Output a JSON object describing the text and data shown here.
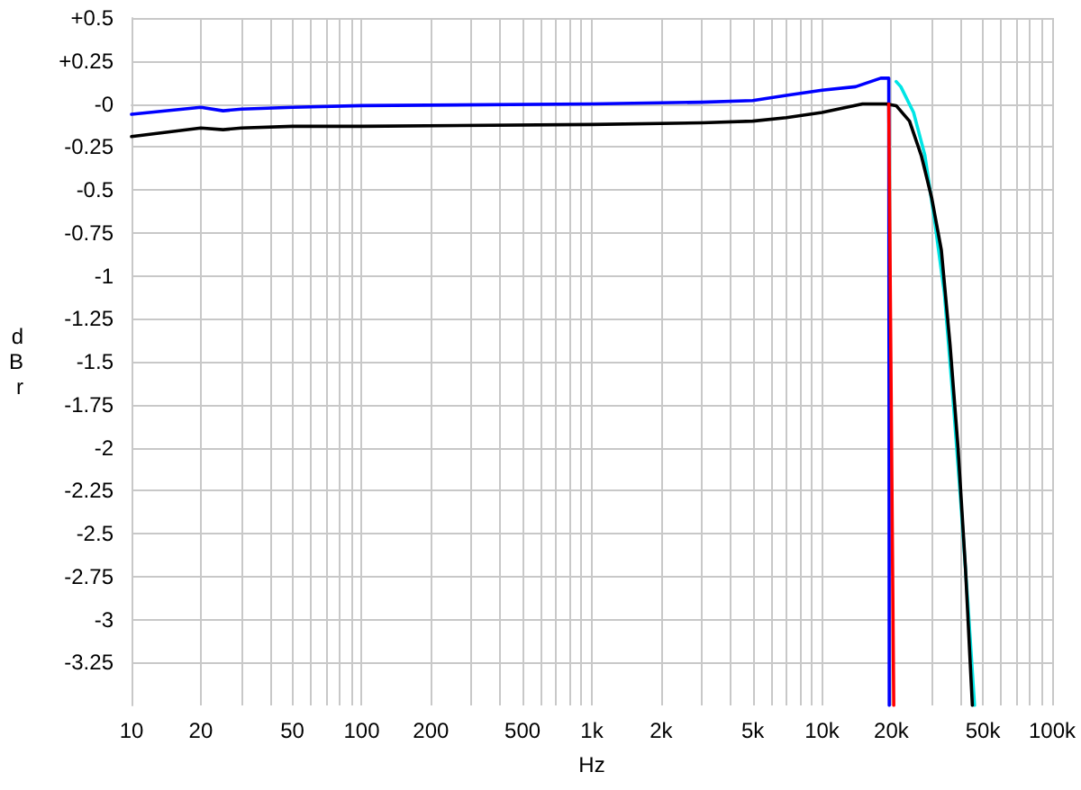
{
  "chart_data": {
    "type": "line",
    "xlabel": "Hz",
    "ylabel": "dBr",
    "log": "x",
    "grid": true,
    "marker": "none",
    "line_style": "solid",
    "xlim": [
      10,
      100000
    ],
    "ylim": [
      -3.5,
      0.5
    ],
    "xticks": [
      {
        "value": 10,
        "label": "10"
      },
      {
        "value": 20,
        "label": "20"
      },
      {
        "value": 30,
        "label": null
      },
      {
        "value": 40,
        "label": null
      },
      {
        "value": 50,
        "label": "50"
      },
      {
        "value": 60,
        "label": null
      },
      {
        "value": 70,
        "label": null
      },
      {
        "value": 80,
        "label": null
      },
      {
        "value": 90,
        "label": null
      },
      {
        "value": 100,
        "label": "100"
      },
      {
        "value": 200,
        "label": "200"
      },
      {
        "value": 300,
        "label": null
      },
      {
        "value": 400,
        "label": null
      },
      {
        "value": 500,
        "label": "500"
      },
      {
        "value": 600,
        "label": null
      },
      {
        "value": 700,
        "label": null
      },
      {
        "value": 800,
        "label": null
      },
      {
        "value": 900,
        "label": null
      },
      {
        "value": 1000,
        "label": "1k"
      },
      {
        "value": 2000,
        "label": "2k"
      },
      {
        "value": 3000,
        "label": null
      },
      {
        "value": 4000,
        "label": null
      },
      {
        "value": 5000,
        "label": "5k"
      },
      {
        "value": 6000,
        "label": null
      },
      {
        "value": 7000,
        "label": null
      },
      {
        "value": 8000,
        "label": null
      },
      {
        "value": 9000,
        "label": null
      },
      {
        "value": 10000,
        "label": "10k"
      },
      {
        "value": 20000,
        "label": "20k"
      },
      {
        "value": 30000,
        "label": null
      },
      {
        "value": 40000,
        "label": null
      },
      {
        "value": 50000,
        "label": "50k"
      },
      {
        "value": 60000,
        "label": null
      },
      {
        "value": 70000,
        "label": null
      },
      {
        "value": 80000,
        "label": null
      },
      {
        "value": 90000,
        "label": null
      },
      {
        "value": 100000,
        "label": "100k"
      }
    ],
    "yticks": [
      {
        "value": 0.5,
        "label": "+0.5"
      },
      {
        "value": 0.25,
        "label": "+0.25"
      },
      {
        "value": 0,
        "label": "-0"
      },
      -0.25,
      -0.5,
      -0.75,
      -1,
      -1.25,
      -1.5,
      -1.75,
      -2,
      -2.25,
      -2.5,
      -2.75,
      -3,
      -3.25
    ],
    "series": [
      {
        "color": "#00e5e5",
        "x": [
          21000,
          22000,
          25000,
          28000,
          31000,
          34000,
          37000,
          40000,
          43000,
          46000
        ],
        "values": [
          0.13,
          0.1,
          -0.05,
          -0.3,
          -0.7,
          -1.1,
          -1.7,
          -2.3,
          -2.9,
          -3.5
        ]
      },
      {
        "color": "#0000ff",
        "x": [
          10,
          20,
          25,
          30,
          50,
          100,
          1000,
          3000,
          5000,
          7000,
          10000,
          14000,
          18000,
          19500,
          19600
        ],
        "values": [
          -0.06,
          -0.02,
          -0.04,
          -0.03,
          -0.02,
          -0.01,
          0,
          0.01,
          0.02,
          0.05,
          0.08,
          0.1,
          0.15,
          0.15,
          -3.5
        ]
      },
      {
        "color": "#000000",
        "x": [
          10,
          20,
          25,
          30,
          50,
          100,
          1000,
          3000,
          5000,
          7000,
          10000,
          15000,
          19000,
          21000,
          24000,
          27000,
          30000,
          33000,
          36000,
          39000,
          42000,
          45000
        ],
        "values": [
          -0.19,
          -0.14,
          -0.15,
          -0.14,
          -0.13,
          -0.13,
          -0.12,
          -0.11,
          -0.1,
          -0.08,
          -0.05,
          0,
          0,
          -0.01,
          -0.1,
          -0.3,
          -0.55,
          -0.85,
          -1.4,
          -2,
          -2.7,
          -3.5
        ]
      },
      {
        "color": "#ff0000",
        "x": [
          19500,
          20500
        ],
        "values": [
          0,
          -3.5
        ]
      }
    ]
  }
}
